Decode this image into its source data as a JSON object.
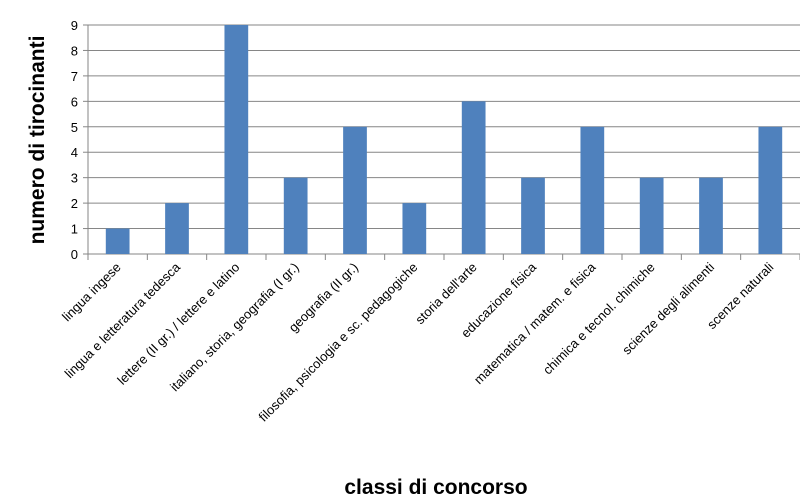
{
  "chart_data": {
    "type": "bar",
    "xlabel": "classi di concorso",
    "ylabel": "numero di tirocinanti",
    "ylim": [
      0,
      9
    ],
    "yticks": [
      0,
      1,
      2,
      3,
      4,
      5,
      6,
      7,
      8,
      9
    ],
    "grid": true,
    "legend": "none",
    "bar_color": "#4F81BD",
    "grid_color": "#868686",
    "categories": [
      "lingua ingese",
      "lingua e letteratura tedesca",
      "lettere (II gr.) / lettere e latino",
      "italiano, storia, geografia (I gr.)",
      "geografia (II gr.)",
      "filosofia, psicologia e sc. pedagogiche",
      "storia dell'arte",
      "educazione fisica",
      "matematica / matem. e fisica",
      "chimica e tecnol. chimiche",
      "scienze degli alimenti",
      "scenze naturali"
    ],
    "values": [
      1,
      2,
      9,
      3,
      5,
      2,
      6,
      3,
      5,
      3,
      3,
      5
    ]
  }
}
